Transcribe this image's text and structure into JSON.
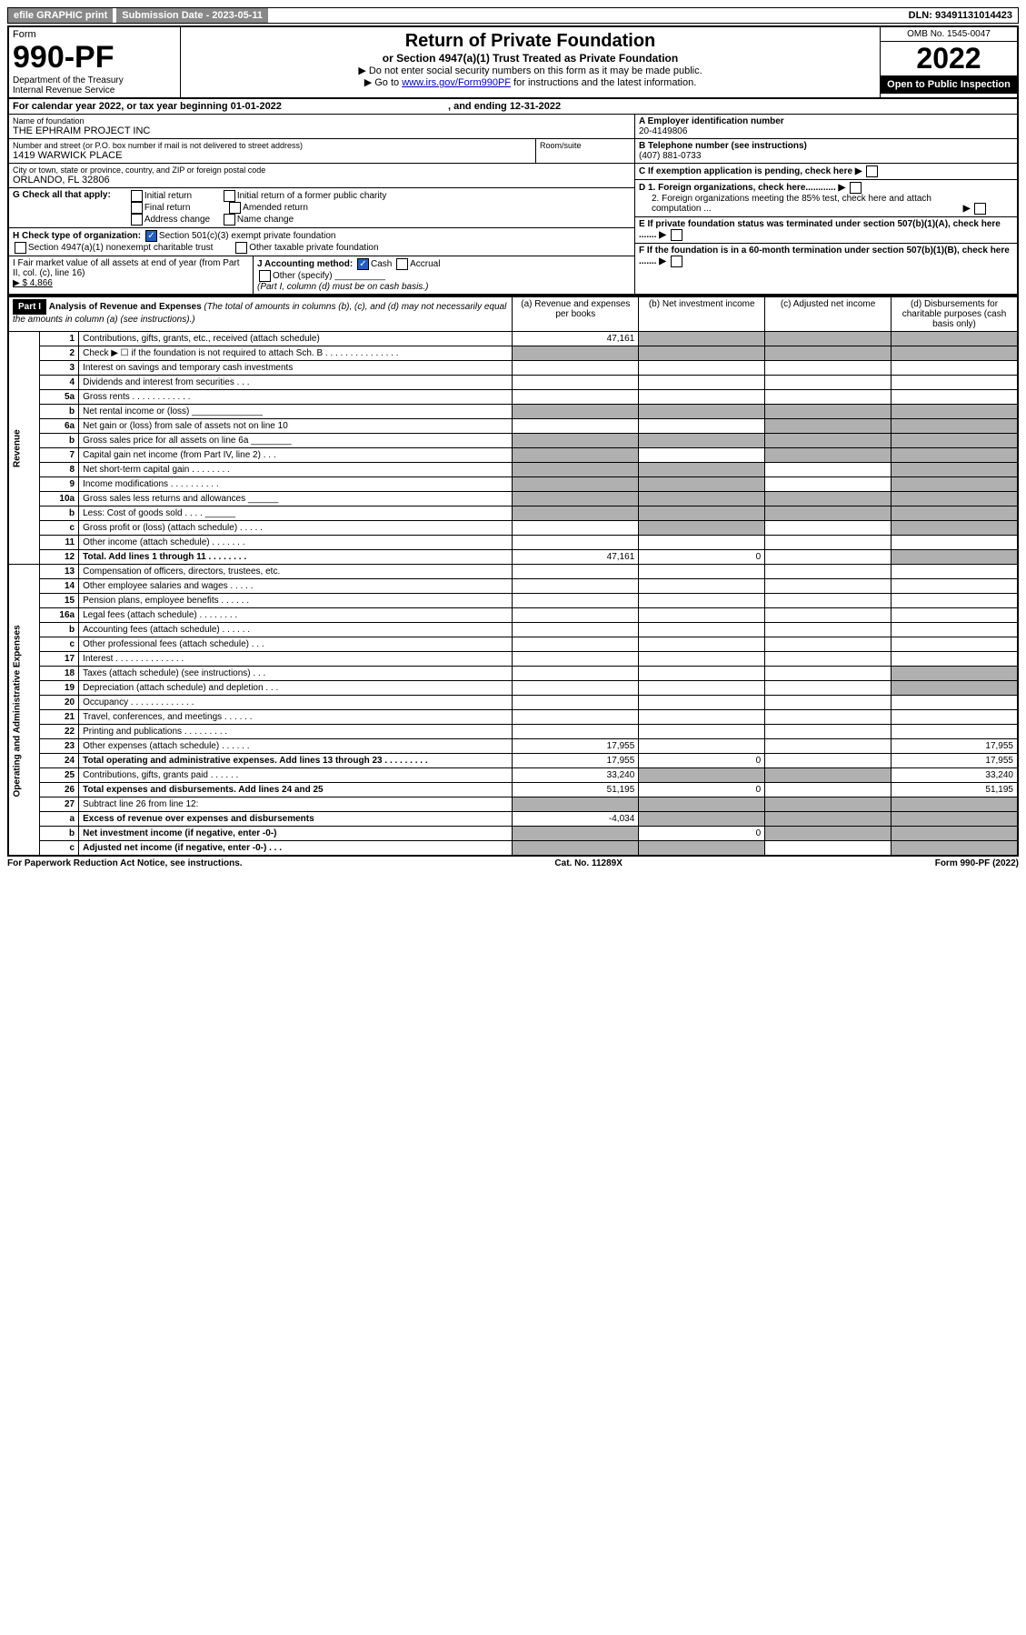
{
  "top": {
    "btn1": "efile GRAPHIC print",
    "subdate_lbl": "Submission Date - 2023-05-11",
    "dln": "DLN: 93491131014423"
  },
  "header": {
    "form_word": "Form",
    "form_num": "990-PF",
    "dept": "Department of the Treasury",
    "irs": "Internal Revenue Service",
    "title": "Return of Private Foundation",
    "subtitle": "or Section 4947(a)(1) Trust Treated as Private Foundation",
    "note1": "▶ Do not enter social security numbers on this form as it may be made public.",
    "note2_pre": "▶ Go to ",
    "note2_link": "www.irs.gov/Form990PF",
    "note2_post": " for instructions and the latest information.",
    "omb": "OMB No. 1545-0047",
    "year": "2022",
    "open": "Open to Public Inspection"
  },
  "calendar": {
    "text": "For calendar year 2022, or tax year beginning 01-01-2022",
    "end": ", and ending 12-31-2022"
  },
  "info": {
    "name_lbl": "Name of foundation",
    "name": "THE EPHRAIM PROJECT INC",
    "addr_lbl": "Number and street (or P.O. box number if mail is not delivered to street address)",
    "addr": "1419 WARWICK PLACE",
    "room_lbl": "Room/suite",
    "city_lbl": "City or town, state or province, country, and ZIP or foreign postal code",
    "city": "ORLANDO, FL  32806",
    "ein_lbl": "A Employer identification number",
    "ein": "20-4149806",
    "phone_lbl": "B Telephone number (see instructions)",
    "phone": "(407) 881-0733",
    "c": "C If exemption application is pending, check here",
    "d1": "D 1. Foreign organizations, check here............",
    "d2": "2. Foreign organizations meeting the 85% test, check here and attach computation ...",
    "e": "E  If private foundation status was terminated under section 507(b)(1)(A), check here .......",
    "f": "F  If the foundation is in a 60-month termination under section 507(b)(1)(B), check here .......",
    "g_lbl": "G Check all that apply:",
    "g_opts": [
      "Initial return",
      "Final return",
      "Address change",
      "Initial return of a former public charity",
      "Amended return",
      "Name change"
    ],
    "h_lbl": "H Check type of organization:",
    "h1": "Section 501(c)(3) exempt private foundation",
    "h2": "Section 4947(a)(1) nonexempt charitable trust",
    "h3": "Other taxable private foundation",
    "i_lbl": "I Fair market value of all assets at end of year (from Part II, col. (c), line 16)",
    "i_val": "▶ $  4,866",
    "j_lbl": "J Accounting method:",
    "j_cash": "Cash",
    "j_accr": "Accrual",
    "j_other": "Other (specify)",
    "j_note": "(Part I, column (d) must be on cash basis.)"
  },
  "part1": {
    "hdr": "Part I",
    "title": "Analysis of Revenue and Expenses",
    "title_note": "(The total of amounts in columns (b), (c), and (d) may not necessarily equal the amounts in column (a) (see instructions).)",
    "col_a": "(a)   Revenue and expenses per books",
    "col_b": "(b)   Net investment income",
    "col_c": "(c)   Adjusted net income",
    "col_d": "(d)   Disbursements for charitable purposes (cash basis only)",
    "side_rev": "Revenue",
    "side_exp": "Operating and Administrative Expenses"
  },
  "rows": [
    {
      "n": "1",
      "d": "Contributions, gifts, grants, etc., received (attach schedule)",
      "a": "47,161",
      "shade_bcd": true
    },
    {
      "n": "2",
      "d": "Check ▶ ☐ if the foundation is not required to attach Sch. B    .   .   .   .   .   .   .   .   .   .   .   .   .   .   .",
      "shade_all": true
    },
    {
      "n": "3",
      "d": "Interest on savings and temporary cash investments"
    },
    {
      "n": "4",
      "d": "Dividends and interest from securities     .   .   ."
    },
    {
      "n": "5a",
      "d": "Gross rents     .   .   .   .   .   .   .   .   .   .   .   ."
    },
    {
      "n": "b",
      "d": "Net rental income or (loss)  ______________",
      "shade_all": true
    },
    {
      "n": "6a",
      "d": "Net gain or (loss) from sale of assets not on line 10",
      "shade_cd": true
    },
    {
      "n": "b",
      "d": "Gross sales price for all assets on line 6a ________",
      "shade_all": true
    },
    {
      "n": "7",
      "d": "Capital gain net income (from Part IV, line 2)   .   .   .",
      "shade_acd": true
    },
    {
      "n": "8",
      "d": "Net short-term capital gain  .   .   .   .   .   .   .   .",
      "shade_abd": true
    },
    {
      "n": "9",
      "d": "Income modifications  .   .   .   .   .   .   .   .   .   .",
      "shade_abd": true
    },
    {
      "n": "10a",
      "d": "Gross sales less returns and allowances  ______",
      "shade_all": true
    },
    {
      "n": "b",
      "d": "Less: Cost of goods sold    .   .   .   .   ______",
      "shade_all": true
    },
    {
      "n": "c",
      "d": "Gross profit or (loss) (attach schedule)    .   .   .   .   .",
      "shade_bd": true
    },
    {
      "n": "11",
      "d": "Other income (attach schedule)    .   .   .   .   .   .   ."
    },
    {
      "n": "12",
      "d": "Total. Add lines 1 through 11    .   .   .   .   .   .   .   .",
      "a": "47,161",
      "b": "0",
      "bold": true,
      "shade_d": true
    },
    {
      "n": "13",
      "d": "Compensation of officers, directors, trustees, etc."
    },
    {
      "n": "14",
      "d": "Other employee salaries and wages   .   .   .   .   ."
    },
    {
      "n": "15",
      "d": "Pension plans, employee benefits  .   .   .   .   .   ."
    },
    {
      "n": "16a",
      "d": "Legal fees (attach schedule)  .   .   .   .   .   .   .   ."
    },
    {
      "n": "b",
      "d": "Accounting fees (attach schedule)  .   .   .   .   .   ."
    },
    {
      "n": "c",
      "d": "Other professional fees (attach schedule)    .   .   ."
    },
    {
      "n": "17",
      "d": "Interest  .   .   .   .   .   .   .   .   .   .   .   .   .   ."
    },
    {
      "n": "18",
      "d": "Taxes (attach schedule) (see instructions)    .   .   .",
      "shade_d": true
    },
    {
      "n": "19",
      "d": "Depreciation (attach schedule) and depletion   .   .   .",
      "shade_d": true
    },
    {
      "n": "20",
      "d": "Occupancy  .   .   .   .   .   .   .   .   .   .   .   .   ."
    },
    {
      "n": "21",
      "d": "Travel, conferences, and meetings  .   .   .   .   .   ."
    },
    {
      "n": "22",
      "d": "Printing and publications  .   .   .   .   .   .   .   .   ."
    },
    {
      "n": "23",
      "d": "Other expenses (attach schedule)  .   .   .   .   .   .",
      "a": "17,955",
      "dd": "17,955"
    },
    {
      "n": "24",
      "d": "Total operating and administrative expenses. Add lines 13 through 23   .   .   .   .   .   .   .   .   .",
      "a": "17,955",
      "b": "0",
      "dd": "17,955",
      "bold": true
    },
    {
      "n": "25",
      "d": "Contributions, gifts, grants paid    .   .   .   .   .   .",
      "a": "33,240",
      "dd": "33,240",
      "shade_bc": true
    },
    {
      "n": "26",
      "d": "Total expenses and disbursements. Add lines 24 and 25",
      "a": "51,195",
      "b": "0",
      "dd": "51,195",
      "bold": true
    },
    {
      "n": "27",
      "d": "Subtract line 26 from line 12:",
      "shade_all": true
    },
    {
      "n": "a",
      "d": "Excess of revenue over expenses and disbursements",
      "a": "-4,034",
      "bold": true,
      "shade_bcd": true
    },
    {
      "n": "b",
      "d": "Net investment income (if negative, enter -0-)",
      "b": "0",
      "bold": true,
      "shade_acd": true
    },
    {
      "n": "c",
      "d": "Adjusted net income (if negative, enter -0-)   .   .   .",
      "bold": true,
      "shade_abd": true
    }
  ],
  "footer": {
    "left": "For Paperwork Reduction Act Notice, see instructions.",
    "mid": "Cat. No. 11289X",
    "right": "Form 990-PF (2022)"
  }
}
